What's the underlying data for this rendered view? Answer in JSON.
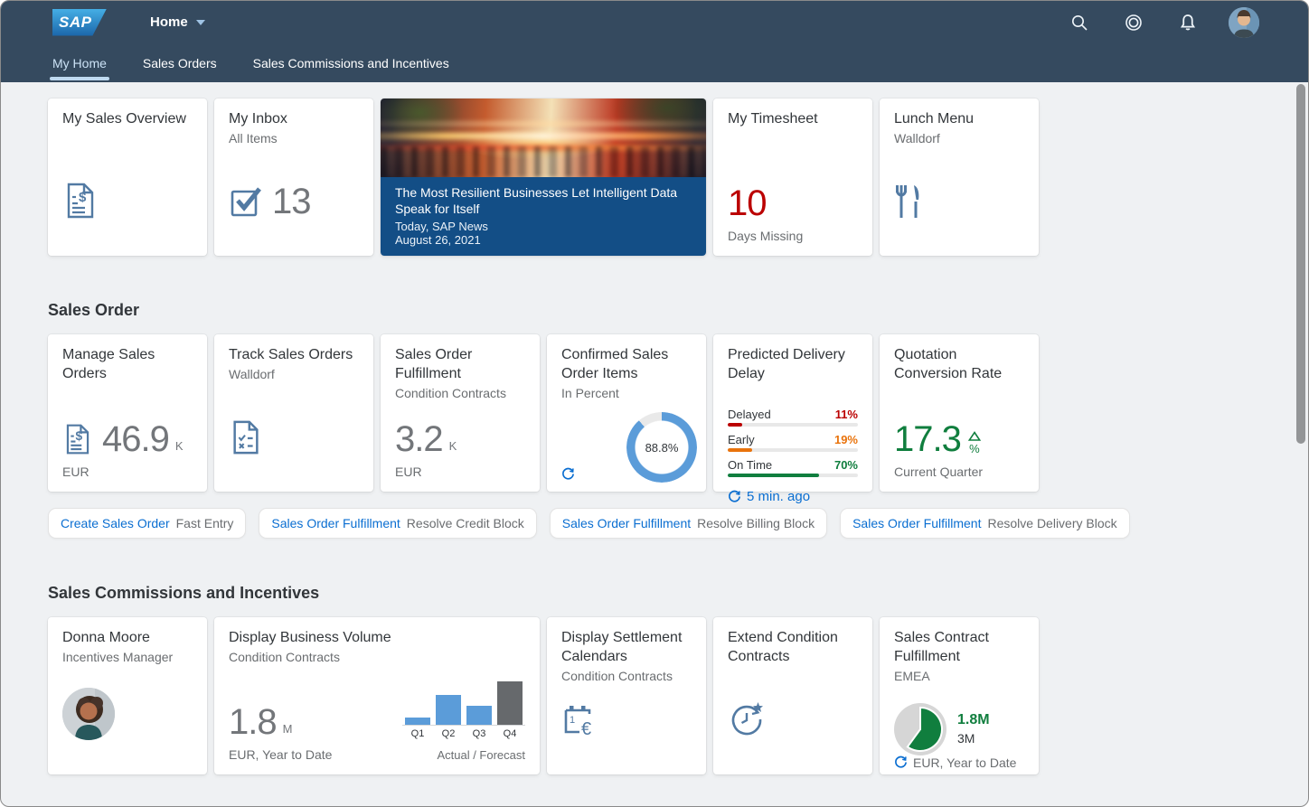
{
  "topbar": {
    "logo_text": "SAP",
    "title": "Home",
    "icons": {
      "search": "search-icon",
      "copilot": "copilot-icon",
      "bell": "notifications-icon",
      "avatar": "user-avatar"
    }
  },
  "tabs": [
    {
      "label": "My Home",
      "active": true
    },
    {
      "label": "Sales Orders",
      "active": false
    },
    {
      "label": "Sales Commissions and Incentives",
      "active": false
    }
  ],
  "home_tiles": {
    "sales_overview": {
      "title": "My Sales Overview",
      "icon": "sales-document-icon"
    },
    "inbox": {
      "title": "My Inbox",
      "subtitle": "All Items",
      "count": "13",
      "icon": "task-check-icon"
    },
    "news": {
      "headline": "The Most Resilient Businesses Let Intelligent Data Speak for Itself",
      "source": "Today, SAP News",
      "date": "August 26, 2021"
    },
    "timesheet": {
      "title": "My Timesheet",
      "value": "10",
      "label": "Days Missing",
      "value_color": "#bb0000"
    },
    "lunch": {
      "title": "Lunch Menu",
      "subtitle": "Walldorf",
      "icon": "meal-icon"
    }
  },
  "sales_order_section": {
    "title": "Sales Order",
    "manage_sales_orders": {
      "title": "Manage Sales Orders",
      "value": "46.9",
      "unit": "K",
      "currency": "EUR",
      "icon": "sales-document-icon"
    },
    "track_sales_orders": {
      "title": "Track Sales Orders",
      "subtitle": "Walldorf",
      "icon": "checklist-document-icon"
    },
    "fulfillment": {
      "title": "Sales Order Fulfillment",
      "subtitle": "Condition Contracts",
      "value": "3.2",
      "unit": "K",
      "currency": "EUR"
    },
    "confirmed_items": {
      "title": "Confirmed Sales Order Items",
      "subtitle": "In Percent",
      "percent": 88.8,
      "percent_label": "88.8%",
      "ring_color": "#5b9cd9",
      "rest_color": "#e9e9e9"
    },
    "delivery_delay": {
      "title": "Predicted Delivery Delay",
      "rows": [
        {
          "label": "Delayed",
          "value": 11,
          "pct": "11%",
          "color": "#bb0000"
        },
        {
          "label": "Early",
          "value": 19,
          "pct": "19%",
          "color": "#e9730c"
        },
        {
          "label": "On Time",
          "value": 70,
          "pct": "70%",
          "color": "#107e3e"
        }
      ],
      "refreshed": "5 min. ago"
    },
    "quotation_rate": {
      "title": "Quotation Conversion Rate",
      "value": "17.3",
      "unit": "%",
      "trend": "up",
      "label": "Current Quarter",
      "value_color": "#107e3e"
    },
    "links": [
      {
        "main": "Create Sales Order",
        "sub": "Fast Entry"
      },
      {
        "main": "Sales Order Fulfillment",
        "sub": "Resolve Credit Block"
      },
      {
        "main": "Sales Order Fulfillment",
        "sub": "Resolve Billing Block"
      },
      {
        "main": "Sales Order Fulfillment",
        "sub": "Resolve Delivery Block"
      }
    ]
  },
  "commissions_section": {
    "title": "Sales Commissions and Incentives",
    "profile": {
      "title": "Donna Moore",
      "subtitle": "Incentives Manager",
      "icon": "profile-photo"
    },
    "business_volume": {
      "title": "Display Business Volume",
      "subtitle": "Condition Contracts",
      "value": "1.8",
      "unit": "M",
      "label": "EUR, Year to Date",
      "chart": {
        "type": "bar",
        "bars": [
          {
            "label": "Q1",
            "value": 17,
            "kind": "actual"
          },
          {
            "label": "Q2",
            "value": 69,
            "kind": "actual"
          },
          {
            "label": "Q3",
            "value": 44,
            "kind": "actual"
          },
          {
            "label": "Q4",
            "value": 100,
            "kind": "forecast"
          }
        ],
        "actual_color": "#5b9cd9",
        "forecast_color": "#66696c",
        "caption": "Actual / Forecast"
      }
    },
    "settlement_calendars": {
      "title": "Display Settlement Calendars",
      "subtitle": "Condition Contracts",
      "icon": "settlement-calendar-icon"
    },
    "extend_contracts": {
      "title": "Extend Condition Contracts",
      "icon": "extend-time-icon"
    },
    "contract_fulfillment": {
      "title": "Sales Contract Fulfillment",
      "subtitle": "EMEA",
      "actual": "1.8M",
      "target": "3M",
      "fraction": 0.6,
      "fill_color": "#107e3e",
      "rest_color": "#d6d6d6",
      "label": "EUR, Year to Date"
    }
  }
}
